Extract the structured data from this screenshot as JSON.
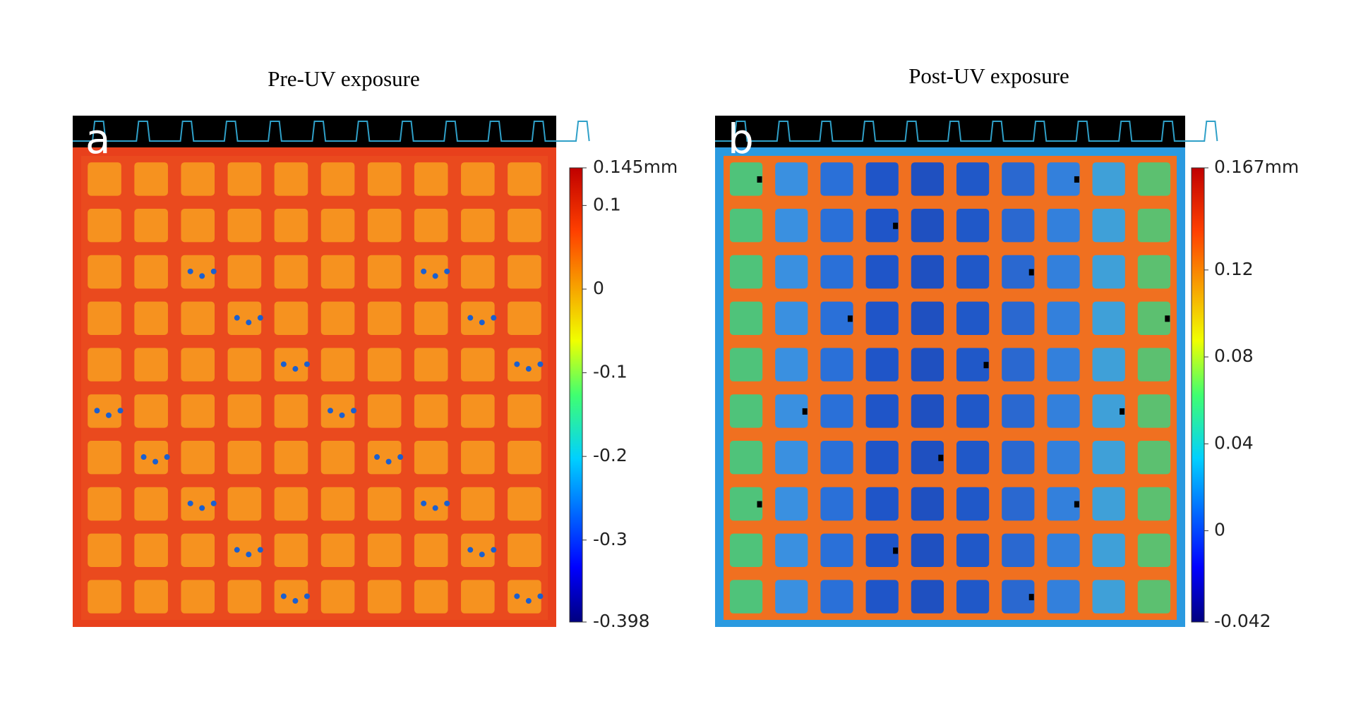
{
  "chart_data": [
    {
      "type": "heatmap",
      "title": "Pre-UV exposure",
      "label": "a",
      "zlim": [
        -0.398,
        0.145
      ],
      "zticks": [
        {
          "value": 0.145,
          "label": "0.145mm"
        },
        0.1,
        0,
        -0.1,
        -0.2,
        -0.3,
        -0.398
      ]
    },
    {
      "type": "heatmap",
      "title": "Post-UV exposure",
      "label": "b",
      "zlim": [
        -0.042,
        0.167
      ],
      "zticks": [
        {
          "value": 0.167,
          "label": "0.167mm"
        },
        0.12,
        0.08,
        0.04,
        0,
        -0.042
      ]
    }
  ]
}
